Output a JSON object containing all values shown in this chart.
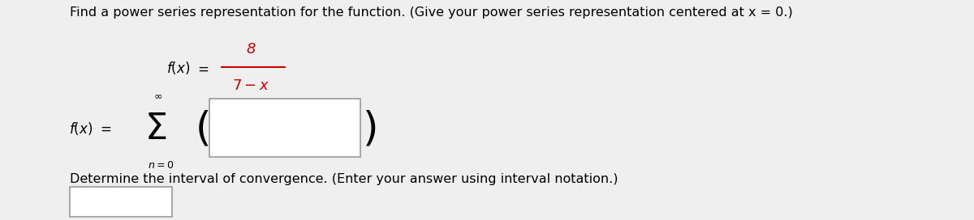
{
  "background_color": "#efefef",
  "title_text": "Find a power series representation for the function. (Give your power series representation centered at x = 0.)",
  "title_fontsize": 11.5,
  "title_color": "#000000",
  "numerator_color": "#cc0000",
  "fx_fontsize": 12,
  "det_text": "Determine the interval of convergence. (Enter your answer using interval notation.)",
  "det_fontsize": 11.5
}
